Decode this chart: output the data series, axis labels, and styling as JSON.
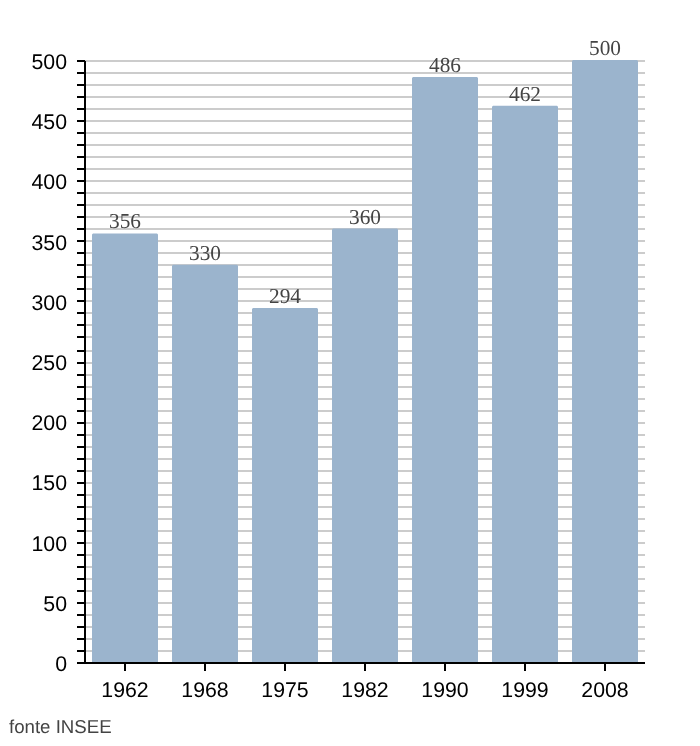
{
  "chart_data": {
    "type": "bar",
    "categories": [
      "1962",
      "1968",
      "1975",
      "1982",
      "1990",
      "1999",
      "2008"
    ],
    "values": [
      356,
      330,
      294,
      360,
      486,
      462,
      500
    ],
    "color": "#9bb4cd",
    "data_labels": true,
    "ylim": [
      0,
      500
    ],
    "yticks": [
      0,
      {
        "value": 10,
        "label": null
      },
      {
        "value": 20,
        "label": null
      },
      {
        "value": 30,
        "label": null
      },
      {
        "value": 40,
        "label": null
      },
      50,
      {
        "value": 60,
        "label": null
      },
      {
        "value": 70,
        "label": null
      },
      {
        "value": 80,
        "label": null
      },
      {
        "value": 90,
        "label": null
      },
      100,
      {
        "value": 110,
        "label": null
      },
      {
        "value": 120,
        "label": null
      },
      {
        "value": 130,
        "label": null
      },
      {
        "value": 140,
        "label": null
      },
      150,
      {
        "value": 160,
        "label": null
      },
      {
        "value": 170,
        "label": null
      },
      {
        "value": 180,
        "label": null
      },
      {
        "value": 190,
        "label": null
      },
      200,
      {
        "value": 210,
        "label": null
      },
      {
        "value": 220,
        "label": null
      },
      {
        "value": 230,
        "label": null
      },
      {
        "value": 240,
        "label": null
      },
      250,
      {
        "value": 260,
        "label": null
      },
      {
        "value": 270,
        "label": null
      },
      {
        "value": 280,
        "label": null
      },
      {
        "value": 290,
        "label": null
      },
      300,
      {
        "value": 310,
        "label": null
      },
      {
        "value": 320,
        "label": null
      },
      {
        "value": 330,
        "label": null
      },
      {
        "value": 340,
        "label": null
      },
      350,
      {
        "value": 360,
        "label": null
      },
      {
        "value": 370,
        "label": null
      },
      {
        "value": 380,
        "label": null
      },
      {
        "value": 390,
        "label": null
      },
      400,
      {
        "value": 410,
        "label": null
      },
      {
        "value": 420,
        "label": null
      },
      {
        "value": 430,
        "label": null
      },
      {
        "value": 440,
        "label": null
      },
      450,
      {
        "value": 460,
        "label": null
      },
      {
        "value": 470,
        "label": null
      },
      {
        "value": 480,
        "label": null
      },
      {
        "value": 490,
        "label": null
      },
      500
    ],
    "grid": "y",
    "annotations": [
      "fonte INSEE"
    ]
  }
}
